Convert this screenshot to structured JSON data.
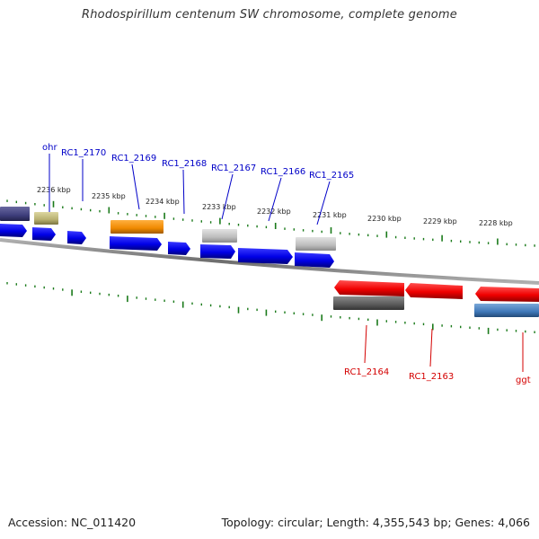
{
  "title": "Rhodospirillum centenum SW chromosome, complete genome",
  "accession": "NC_011420",
  "accession_label": "Accession:",
  "topology_label": "Topology:",
  "topology": "circular",
  "length_label": "Length:",
  "length": "4,355,543 bp",
  "genes_label": "Genes:",
  "genes": "4,066",
  "colors": {
    "forward_label": "#0000c8",
    "reverse_label": "#d40000",
    "tick": "#1a7a1a",
    "backbone": "#7a7a7a"
  },
  "scale_labels": [
    "2236 kbp",
    "2235 kbp",
    "2234 kbp",
    "2233 kbp",
    "2232 kbp",
    "2231 kbp",
    "2230 kbp",
    "2229 kbp",
    "2228 kbp"
  ],
  "forward_gene_labels": [
    "ohr",
    "RC1_2170",
    "RC1_2169",
    "RC1_2168",
    "RC1_2167",
    "RC1_2166",
    "RC1_2165"
  ],
  "reverse_gene_labels": [
    "RC1_2164",
    "RC1_2163",
    "ggt"
  ]
}
